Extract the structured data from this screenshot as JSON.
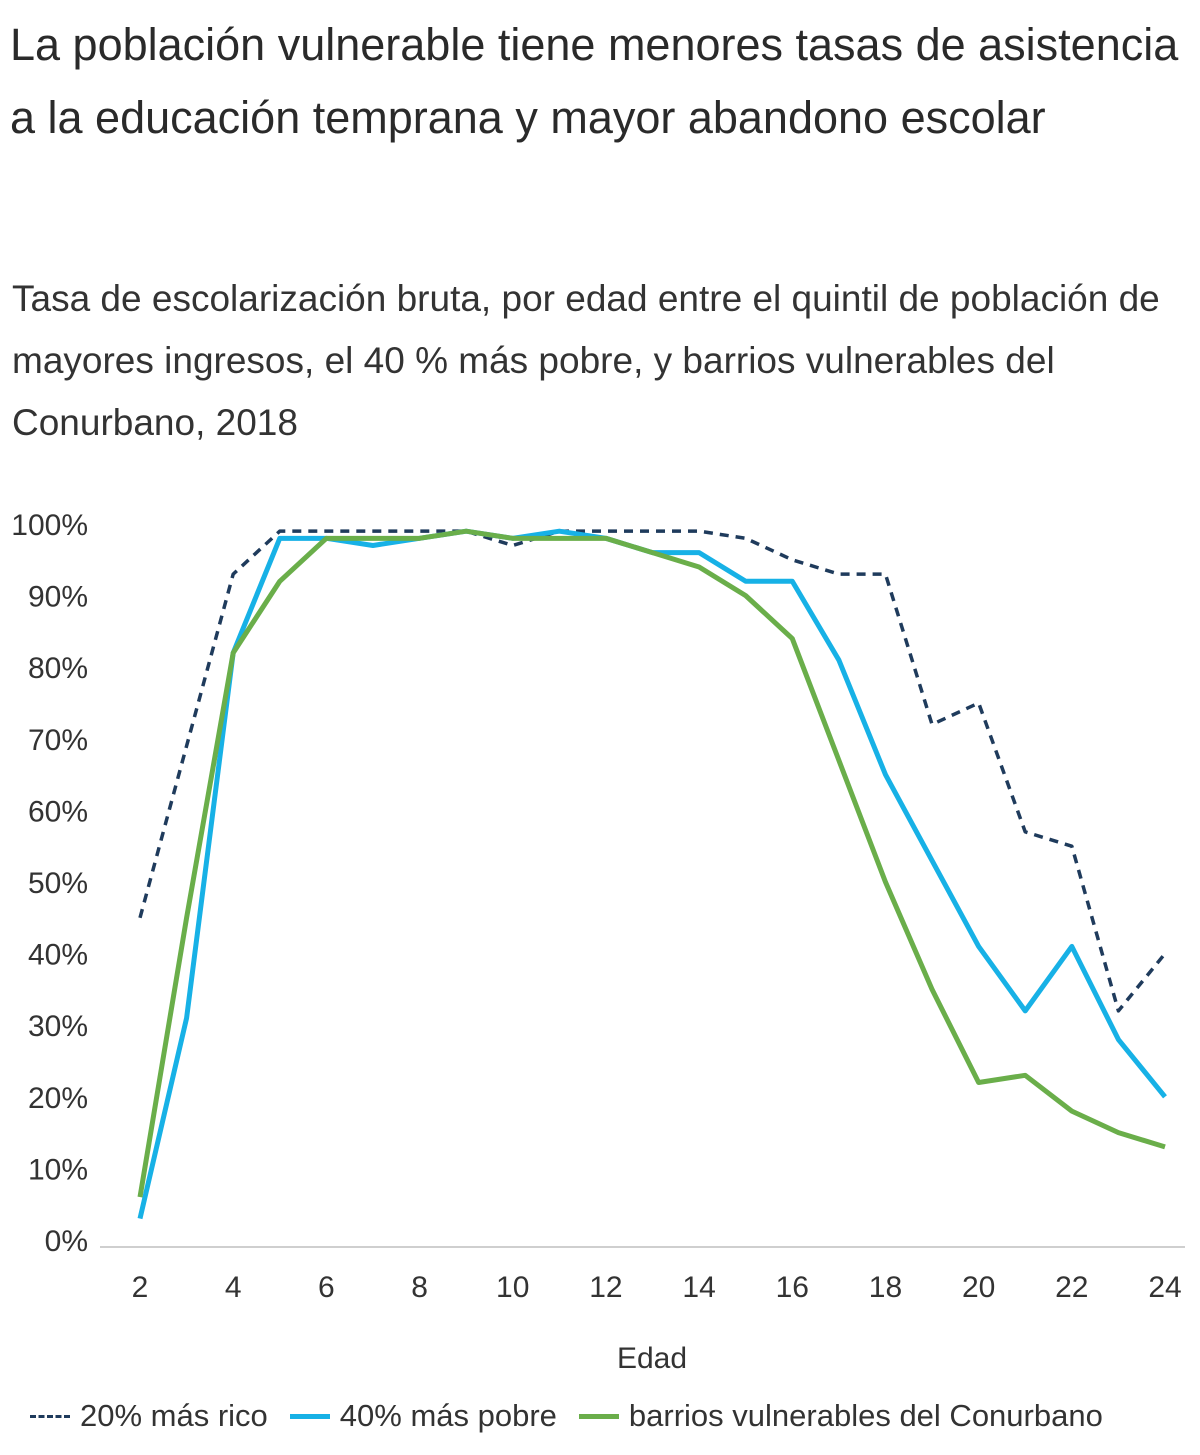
{
  "title": "La población vulnerable tiene menores tasas de asistencia a la educación temprana y mayor abandono escolar",
  "subtitle": "Tasa de escolarización bruta, por edad entre el quintil de población de mayores ingresos, el 40 % más pobre, y barrios vulnerables del Conurbano, 2018",
  "chart_data": {
    "type": "line",
    "title": "La población vulnerable tiene menores tasas de asistencia a la educación temprana y mayor abandono escolar",
    "xlabel": "Edad",
    "ylabel": "",
    "xlim": [
      2,
      24
    ],
    "ylim": [
      0,
      100
    ],
    "x": [
      2,
      3,
      4,
      5,
      6,
      7,
      8,
      9,
      10,
      11,
      12,
      13,
      14,
      15,
      16,
      17,
      18,
      19,
      20,
      21,
      22,
      23,
      24
    ],
    "x_ticks": [
      "2",
      "4",
      "6",
      "8",
      "10",
      "12",
      "14",
      "16",
      "18",
      "20",
      "22",
      "24"
    ],
    "y_ticks": [
      "0%",
      "10%",
      "20%",
      "30%",
      "40%",
      "50%",
      "60%",
      "70%",
      "80%",
      "90%",
      "100%"
    ],
    "legend_position": "bottom",
    "series": [
      {
        "name": "20% más rico",
        "color": "#1f3b5c",
        "style": "dashed",
        "values": [
          45,
          69,
          93,
          99,
          99,
          99,
          99,
          99,
          97,
          99,
          99,
          99,
          99,
          98,
          95,
          93,
          93,
          72,
          75,
          57,
          55,
          32,
          40
        ]
      },
      {
        "name": "40% más pobre",
        "color": "#17b1e6",
        "style": "solid",
        "values": [
          3,
          31,
          82,
          98,
          98,
          97,
          98,
          99,
          98,
          99,
          98,
          96,
          96,
          92,
          92,
          81,
          65,
          53,
          41,
          32,
          41,
          28,
          20
        ]
      },
      {
        "name": "barrios vulnerables del Conurbano",
        "color": "#6aae4a",
        "style": "solid",
        "values": [
          6,
          45,
          82,
          92,
          98,
          98,
          98,
          99,
          98,
          98,
          98,
          96,
          94,
          90,
          84,
          67,
          50,
          35,
          22,
          23,
          18,
          15,
          13
        ]
      }
    ]
  }
}
